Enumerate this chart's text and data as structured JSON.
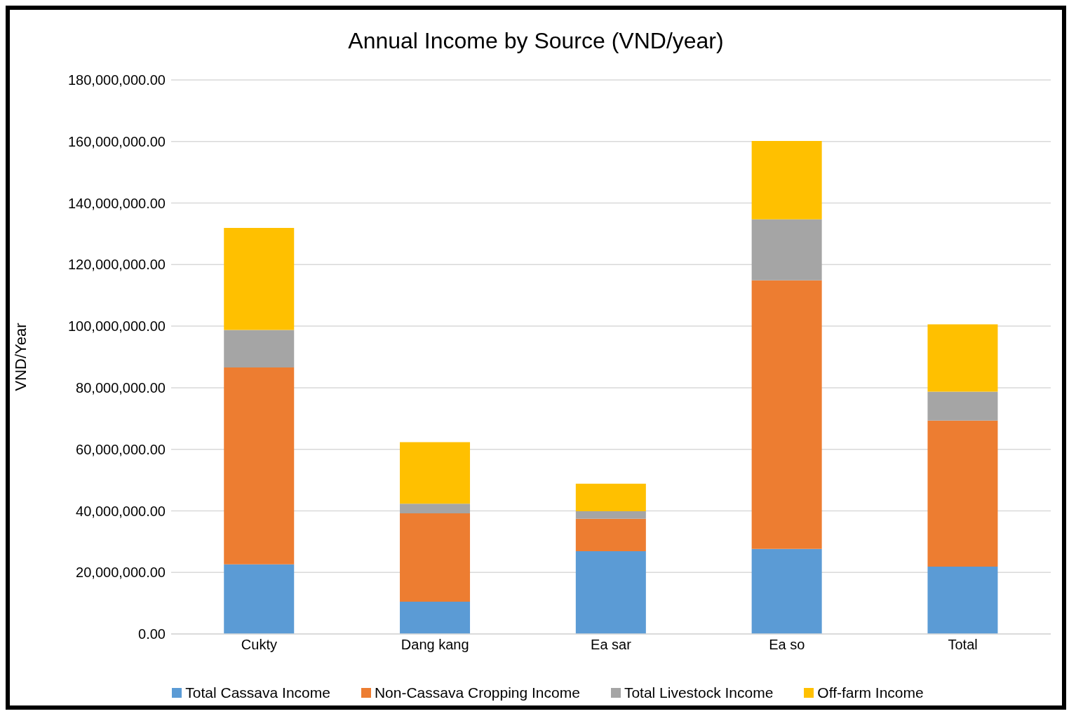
{
  "chart_data": {
    "type": "bar",
    "title": "Annual Income by Source (VND/year)",
    "ylabel": "VND/Year",
    "categories": [
      "Cukty",
      "Dang kang",
      "Ea sar",
      "Ea so",
      "Total"
    ],
    "stacked": true,
    "series": [
      {
        "name": "Total Cassava Income",
        "color": "#5b9bd5",
        "values": [
          22600000,
          10500000,
          26900000,
          27600000,
          21900000
        ]
      },
      {
        "name": "Non-Cassava Cropping Income",
        "color": "#ed7d31",
        "values": [
          64000000,
          28700000,
          10500000,
          87300000,
          47400000
        ]
      },
      {
        "name": "Total Livestock Income",
        "color": "#a5a5a5",
        "values": [
          12200000,
          3100000,
          2500000,
          19800000,
          9400000
        ]
      },
      {
        "name": "Off-farm Income",
        "color": "#ffc000",
        "values": [
          33100000,
          20000000,
          8900000,
          25500000,
          21900000
        ]
      }
    ],
    "ylim": [
      0,
      180000000
    ],
    "yticks": [
      {
        "value": 0,
        "label": "0.00"
      },
      {
        "value": 20000000,
        "label": "20,000,000.00"
      },
      {
        "value": 40000000,
        "label": "40,000,000.00"
      },
      {
        "value": 60000000,
        "label": "60,000,000.00"
      },
      {
        "value": 80000000,
        "label": "80,000,000.00"
      },
      {
        "value": 100000000,
        "label": "100,000,000.00"
      },
      {
        "value": 120000000,
        "label": "120,000,000.00"
      },
      {
        "value": 140000000,
        "label": "140,000,000.00"
      },
      {
        "value": 160000000,
        "label": "160,000,000.00"
      },
      {
        "value": 180000000,
        "label": "180,000,000.00"
      }
    ],
    "grid": "y",
    "legend": "bottom"
  }
}
